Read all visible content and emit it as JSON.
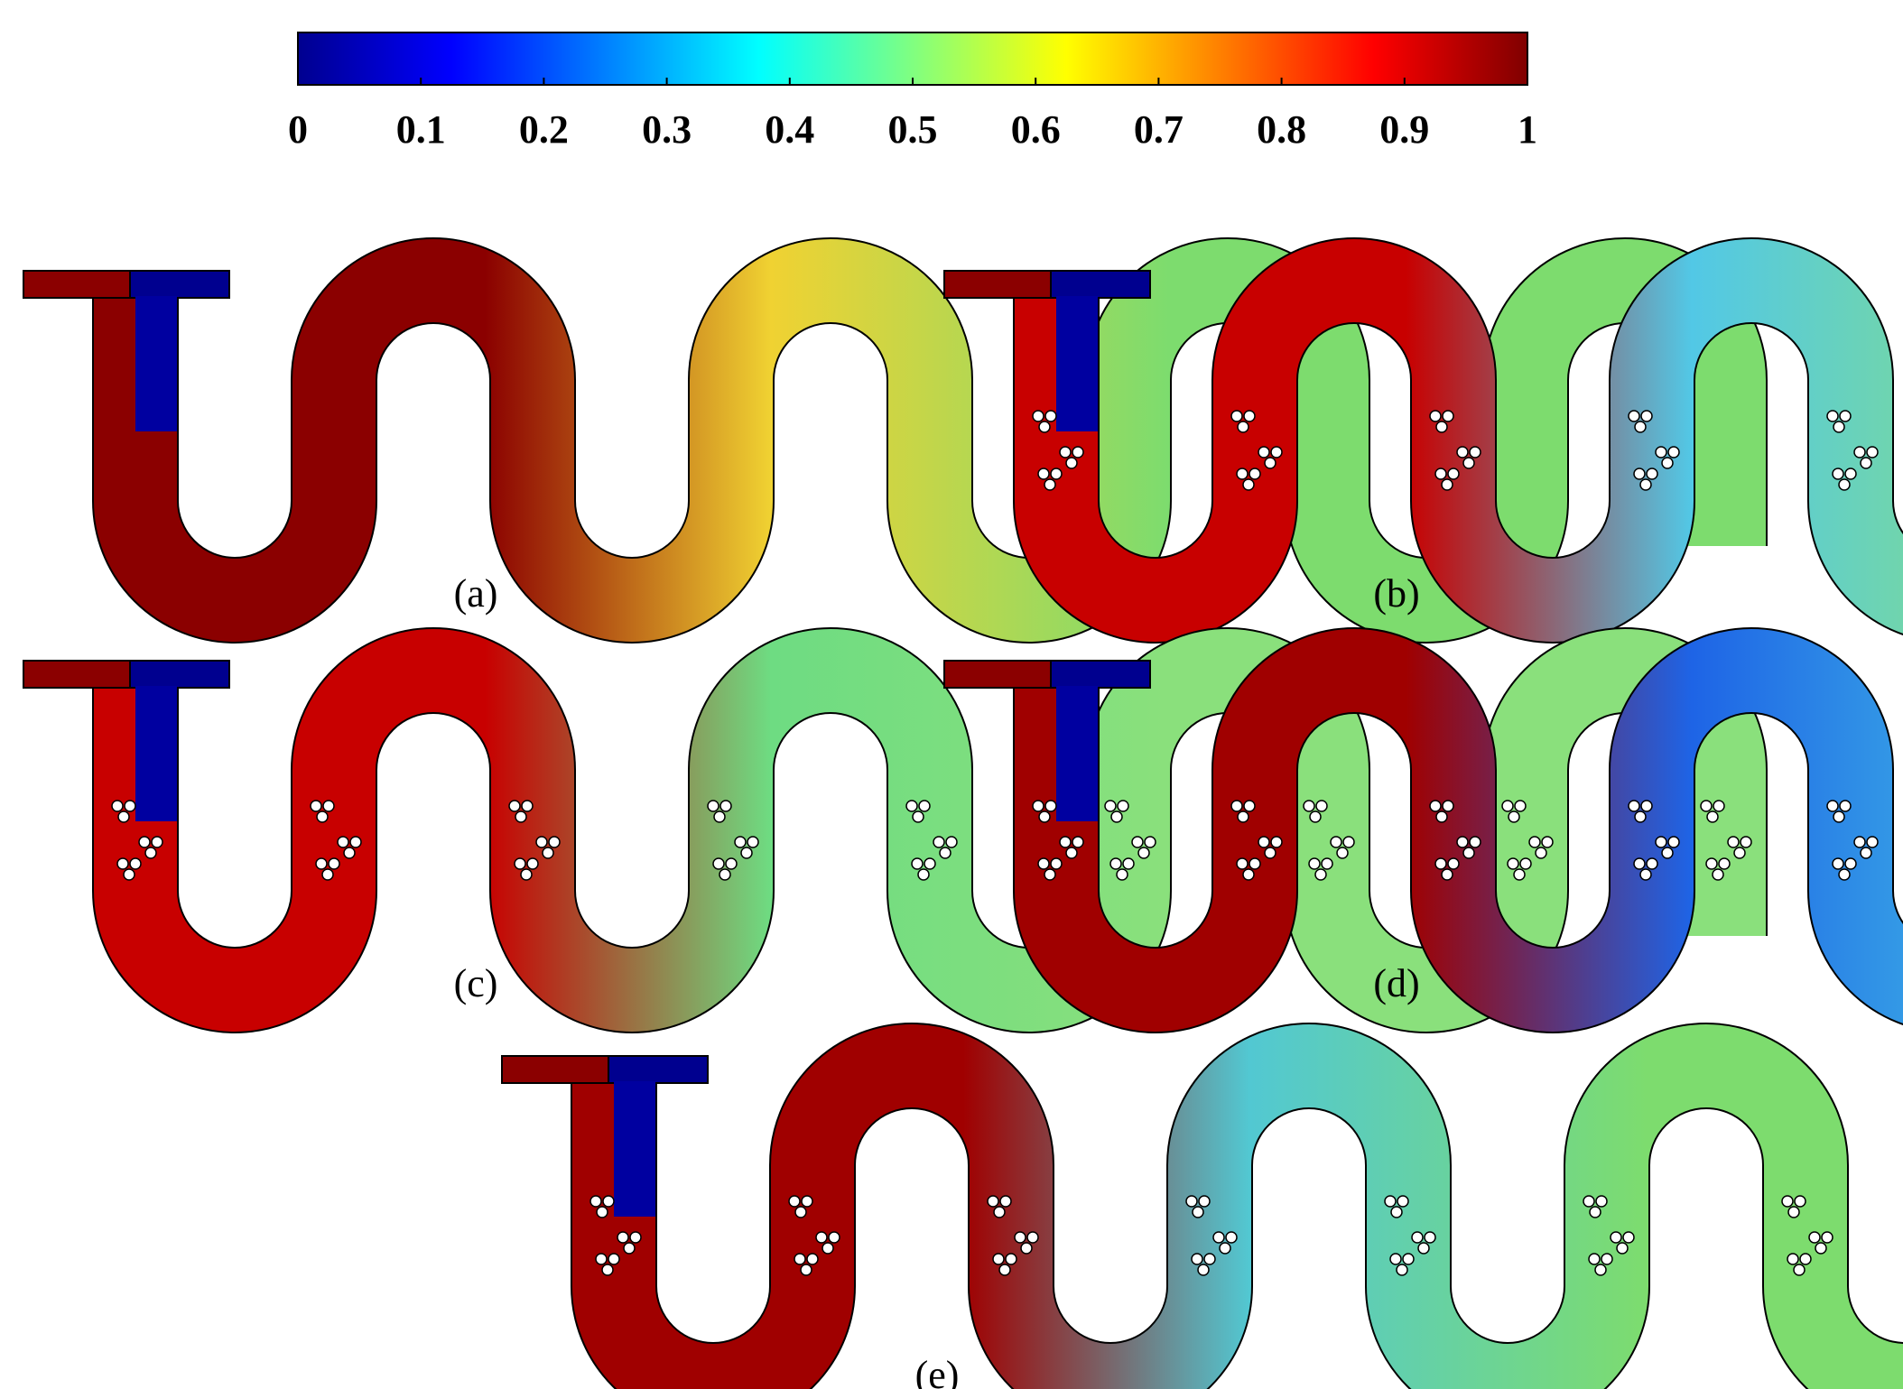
{
  "colorbar": {
    "ticks": [
      "0",
      "0.1",
      "0.2",
      "0.3",
      "0.4",
      "0.5",
      "0.6",
      "0.7",
      "0.8",
      "0.9",
      "1"
    ],
    "colormap": [
      "#00008f",
      "#0000ff",
      "#0080ff",
      "#00ffff",
      "#80ff80",
      "#ffff00",
      "#ff8000",
      "#ff0000",
      "#800000"
    ]
  },
  "panels": [
    {
      "caption": "(a)",
      "obstacles": "none",
      "colors": {
        "left": "#8b0000",
        "mid": "#f0d232",
        "rest": "#7ddc6e"
      }
    },
    {
      "caption": "(b)",
      "obstacles": "clusters",
      "colors": {
        "left": "#c80000",
        "mid": "#52c8e6",
        "rest": "#8ae07c"
      }
    },
    {
      "caption": "(c)",
      "obstacles": "clusters",
      "colors": {
        "left": "#c80000",
        "mid": "#6edc82",
        "rest": "#8ae07c"
      }
    },
    {
      "caption": "(d)",
      "obstacles": "clusters",
      "colors": {
        "left": "#a00000",
        "mid": "#1e64e6",
        "rest": "#46c8e6"
      }
    },
    {
      "caption": "(e)",
      "obstacles": "clusters",
      "colors": {
        "left": "#a00000",
        "mid": "#52c8d2",
        "rest": "#7ddc6e"
      }
    }
  ]
}
